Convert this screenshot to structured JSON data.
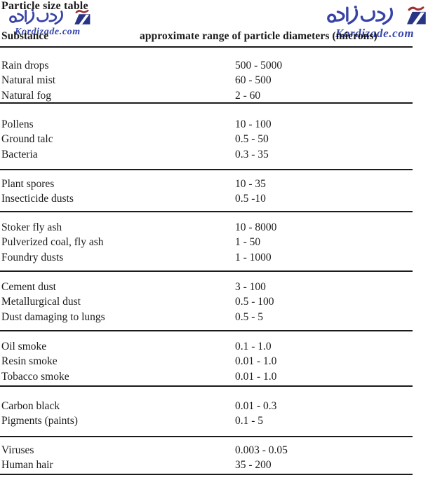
{
  "title": "Particle size table",
  "watermark": {
    "text_fa": "ردی‌زاده",
    "domain": "Kordizade.com",
    "blue": "#2b38a2",
    "navy": "#1c2a80",
    "red_accent": "#9c2424"
  },
  "table": {
    "col_substance": "Substance",
    "col_range": "approximate range of particle diameters (microns)",
    "groups": [
      {
        "rows": [
          {
            "substance": "Rain drops",
            "range": "500 - 5000"
          },
          {
            "substance": "Natural mist",
            "range": "60 - 500"
          },
          {
            "substance": "Natural fog",
            "range": "2 - 60"
          }
        ]
      },
      {
        "rows": [
          {
            "substance": "Pollens",
            "range": "10 - 100"
          },
          {
            "substance": "Ground talc",
            "range": "0.5 - 50"
          },
          {
            "substance": "Bacteria",
            "range": "0.3 - 35"
          }
        ]
      },
      {
        "rows": [
          {
            "substance": "Plant spores",
            "range": "10 - 35"
          },
          {
            "substance": "Insecticide dusts",
            "range": "0.5 -10"
          }
        ]
      },
      {
        "rows": [
          {
            "substance": "Stoker fly ash",
            "range": "10 - 8000"
          },
          {
            "substance": "Pulverized coal, fly ash",
            "range": "1 - 50"
          },
          {
            "substance": "Foundry dusts",
            "range": "1 - 1000"
          }
        ]
      },
      {
        "rows": [
          {
            "substance": "Cement dust",
            "range": "3 - 100"
          },
          {
            "substance": "Metallurgical dust",
            "range": "0.5 - 100"
          },
          {
            "substance": "Dust damaging to lungs",
            "range": "0.5 - 5"
          }
        ]
      },
      {
        "rows": [
          {
            "substance": "Oil smoke",
            "range": "0.1 - 1.0"
          },
          {
            "substance": "Resin smoke",
            "range": "0.01 - 1.0"
          },
          {
            "substance": "Tobacco smoke",
            "range": "0.01 - 1.0"
          }
        ]
      },
      {
        "rows": [
          {
            "substance": "Carbon black",
            "range": "0.01 - 0.3"
          },
          {
            "substance": "Pigments (paints)",
            "range": "0.1 - 5"
          }
        ]
      },
      {
        "rows": [
          {
            "substance": "Viruses",
            "range": "0.003 - 0.05"
          },
          {
            "substance": "Human hair",
            "range": "35 - 200"
          }
        ]
      }
    ]
  }
}
